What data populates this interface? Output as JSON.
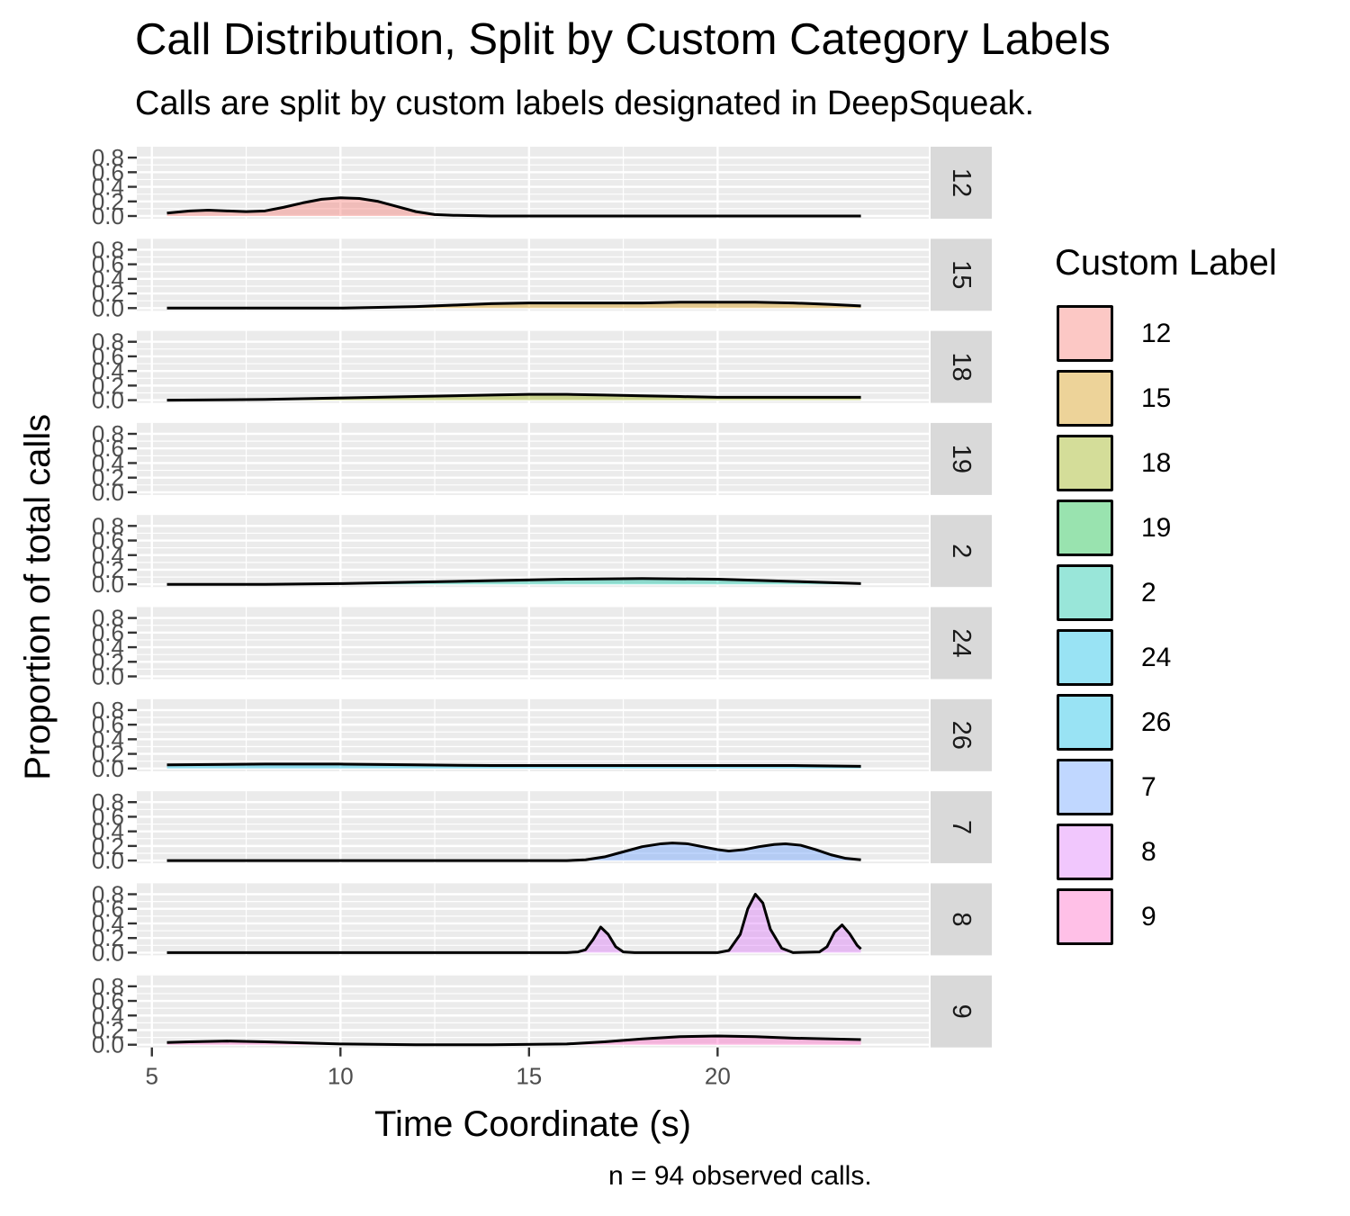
{
  "chart_data": {
    "type": "area",
    "title": "Call Distribution, Split by Custom Category Labels",
    "subtitle": "Calls are split by custom labels designated in DeepSqueak.",
    "caption": "n = 94 observed calls.",
    "xlabel": "Time Coordinate (s)",
    "ylabel": "Proportion of total calls",
    "xlim": [
      4.6,
      25.6
    ],
    "ylim": [
      0,
      0.9
    ],
    "x_ticks": [
      5,
      10,
      15,
      20
    ],
    "x_tick_labels": [
      "5",
      "10",
      "15",
      "20"
    ],
    "y_ticks": [
      0.0,
      0.2,
      0.4,
      0.6,
      0.8
    ],
    "y_tick_labels": [
      "0.0",
      "0.2",
      "0.4",
      "0.6",
      "0.8"
    ],
    "grid": true,
    "facet": "rows",
    "legend": {
      "title": "Custom Label",
      "position": "right"
    },
    "series": [
      {
        "name": "12",
        "color": "#F8766D",
        "x": [
          5.4,
          6.0,
          6.5,
          7.0,
          7.5,
          8.0,
          8.5,
          9.0,
          9.5,
          10.0,
          10.5,
          11.0,
          11.5,
          12.0,
          12.5,
          13.0,
          14.0,
          16.0,
          20.0,
          23.8
        ],
        "y": [
          0.04,
          0.07,
          0.08,
          0.07,
          0.06,
          0.07,
          0.12,
          0.18,
          0.23,
          0.25,
          0.24,
          0.2,
          0.13,
          0.06,
          0.02,
          0.01,
          0.0,
          0.0,
          0.0,
          0.0
        ]
      },
      {
        "name": "15",
        "color": "#D39200",
        "x": [
          5.4,
          8.0,
          10.0,
          11.0,
          12.0,
          13.0,
          14.0,
          15.0,
          16.0,
          17.0,
          18.0,
          19.0,
          20.0,
          21.0,
          22.0,
          23.0,
          23.8
        ],
        "y": [
          0.0,
          0.0,
          0.0,
          0.01,
          0.02,
          0.04,
          0.06,
          0.07,
          0.07,
          0.07,
          0.07,
          0.08,
          0.08,
          0.08,
          0.07,
          0.05,
          0.03
        ]
      },
      {
        "name": "18",
        "color": "#93AA00",
        "x": [
          5.4,
          8.0,
          10.0,
          12.0,
          14.0,
          15.0,
          16.0,
          17.0,
          18.0,
          19.0,
          20.0,
          22.0,
          23.8
        ],
        "y": [
          0.0,
          0.01,
          0.03,
          0.05,
          0.07,
          0.08,
          0.08,
          0.07,
          0.06,
          0.05,
          0.04,
          0.04,
          0.04
        ]
      },
      {
        "name": "19",
        "color": "#00BA38",
        "x": [],
        "y": []
      },
      {
        "name": "2",
        "color": "#00C19F",
        "x": [
          5.4,
          8.0,
          10.0,
          12.0,
          14.0,
          16.0,
          18.0,
          20.0,
          22.0,
          23.8
        ],
        "y": [
          0.0,
          0.0,
          0.01,
          0.03,
          0.05,
          0.07,
          0.08,
          0.07,
          0.04,
          0.01
        ]
      },
      {
        "name": "24",
        "color": "#00B9E3",
        "x": [],
        "y": []
      },
      {
        "name": "26",
        "color": "#00B9E3",
        "x": [
          5.4,
          8.0,
          10.0,
          12.0,
          14.0,
          16.0,
          18.0,
          20.0,
          22.0,
          23.8
        ],
        "y": [
          0.05,
          0.06,
          0.06,
          0.05,
          0.04,
          0.04,
          0.04,
          0.04,
          0.04,
          0.03
        ]
      },
      {
        "name": "7",
        "color": "#619CFF",
        "x": [
          5.4,
          10.0,
          15.0,
          16.0,
          16.5,
          17.0,
          17.5,
          18.0,
          18.5,
          18.8,
          19.2,
          19.6,
          20.0,
          20.3,
          20.7,
          21.1,
          21.5,
          21.8,
          22.2,
          22.6,
          23.0,
          23.4,
          23.8
        ],
        "y": [
          0.0,
          0.0,
          0.0,
          0.0,
          0.01,
          0.05,
          0.12,
          0.19,
          0.23,
          0.24,
          0.23,
          0.19,
          0.15,
          0.13,
          0.15,
          0.19,
          0.22,
          0.23,
          0.21,
          0.15,
          0.08,
          0.03,
          0.01
        ]
      },
      {
        "name": "8",
        "color": "#DB72FB",
        "x": [
          5.4,
          16.0,
          16.3,
          16.5,
          16.7,
          16.9,
          17.1,
          17.3,
          17.5,
          17.8,
          20.0,
          20.3,
          20.6,
          20.8,
          21.0,
          21.2,
          21.4,
          21.7,
          22.0,
          22.7,
          22.9,
          23.1,
          23.3,
          23.5,
          23.7,
          23.8
        ],
        "y": [
          0.0,
          0.0,
          0.01,
          0.04,
          0.18,
          0.35,
          0.25,
          0.08,
          0.01,
          0.0,
          0.0,
          0.03,
          0.25,
          0.6,
          0.8,
          0.68,
          0.32,
          0.06,
          0.0,
          0.01,
          0.08,
          0.28,
          0.38,
          0.26,
          0.1,
          0.05
        ]
      },
      {
        "name": "9",
        "color": "#FF61C3",
        "x": [
          5.4,
          6.0,
          7.0,
          8.0,
          10.0,
          12.0,
          14.0,
          16.0,
          17.0,
          18.0,
          19.0,
          20.0,
          21.0,
          22.0,
          23.0,
          23.8
        ],
        "y": [
          0.03,
          0.04,
          0.05,
          0.04,
          0.01,
          0.0,
          0.0,
          0.01,
          0.04,
          0.08,
          0.11,
          0.12,
          0.11,
          0.09,
          0.08,
          0.07
        ]
      }
    ]
  }
}
